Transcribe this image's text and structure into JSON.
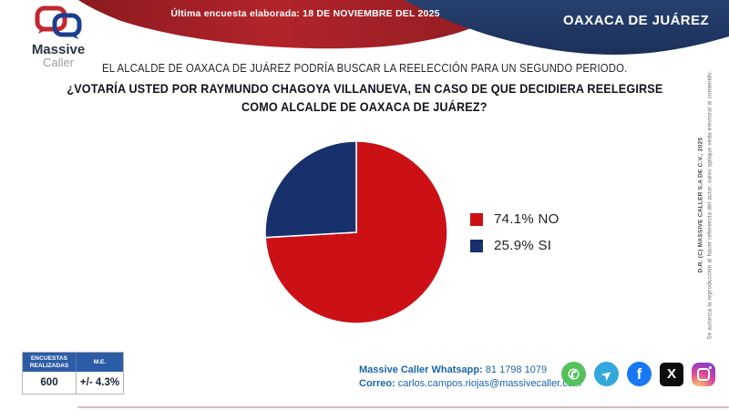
{
  "header": {
    "banner_text": "Última encuesta elaborada: 18 DE NOVIEMBRE DEL 2025",
    "region_label": "OAXACA DE JUÁREZ",
    "logo": {
      "line1": "Massive",
      "line2": "Caller"
    }
  },
  "question": {
    "intro": "EL ALCALDE DE OAXACA DE JUÁREZ PODRÍA BUSCAR LA REELECCIÓN PARA UN SEGUNDO PERIODO.",
    "main_line1": "¿VOTARÍA USTED POR RAYMUNDO CHAGOYA VILLANUEVA, EN CASO DE QUE DECIDIERA REELEGIRSE",
    "main_line2": "COMO ALCALDE DE OAXACA DE JUÁREZ?"
  },
  "chart_data": {
    "type": "pie",
    "title": "",
    "start_angle_deg": 0,
    "direction": "clockwise",
    "legend_position": "right",
    "slices": [
      {
        "label": "NO",
        "value": 74.1,
        "color": "#cb1016",
        "legend_label": "74.1% NO"
      },
      {
        "label": "SI",
        "value": 25.9,
        "color": "#18306b",
        "legend_label": "25.9% SI"
      }
    ]
  },
  "stats_table": {
    "headers": [
      "ENCUESTAS REALIZADAS",
      "M.E."
    ],
    "values": [
      "600",
      "+/- 4.3%"
    ]
  },
  "contact": {
    "whatsapp_label": "Massive Caller Whatsapp:",
    "whatsapp_number": "81 1798 1079",
    "email_label": "Correo:",
    "email": "carlos.campos.riojas@massivecaller.com"
  },
  "social": {
    "items": [
      {
        "name": "whatsapp",
        "glyph": "✆",
        "bg": "#55c15c"
      },
      {
        "name": "telegram",
        "glyph": "➤",
        "bg": "#32a8dd"
      },
      {
        "name": "facebook",
        "glyph": "f",
        "bg": "#1877f2"
      },
      {
        "name": "x",
        "glyph": "X",
        "bg": "#0d0d0d"
      },
      {
        "name": "instagram",
        "glyph": "",
        "bg": ""
      }
    ]
  },
  "copyright": {
    "line1": "D.R. (C) MASSIVE CALLER S.A DE C.V., 2025",
    "line2": "Se autoriza la reproducción al hacer referencia del autor, salvo aplique veda electoral al contenido."
  },
  "colors": {
    "banner_red": "#a82127",
    "banner_red_dark": "#8a1b20",
    "region_navy": "#1e3461",
    "pie_red": "#cb1016",
    "pie_blue": "#18306b",
    "table_header_blue": "#2d5ca6",
    "contact_blue": "#1866a8"
  }
}
